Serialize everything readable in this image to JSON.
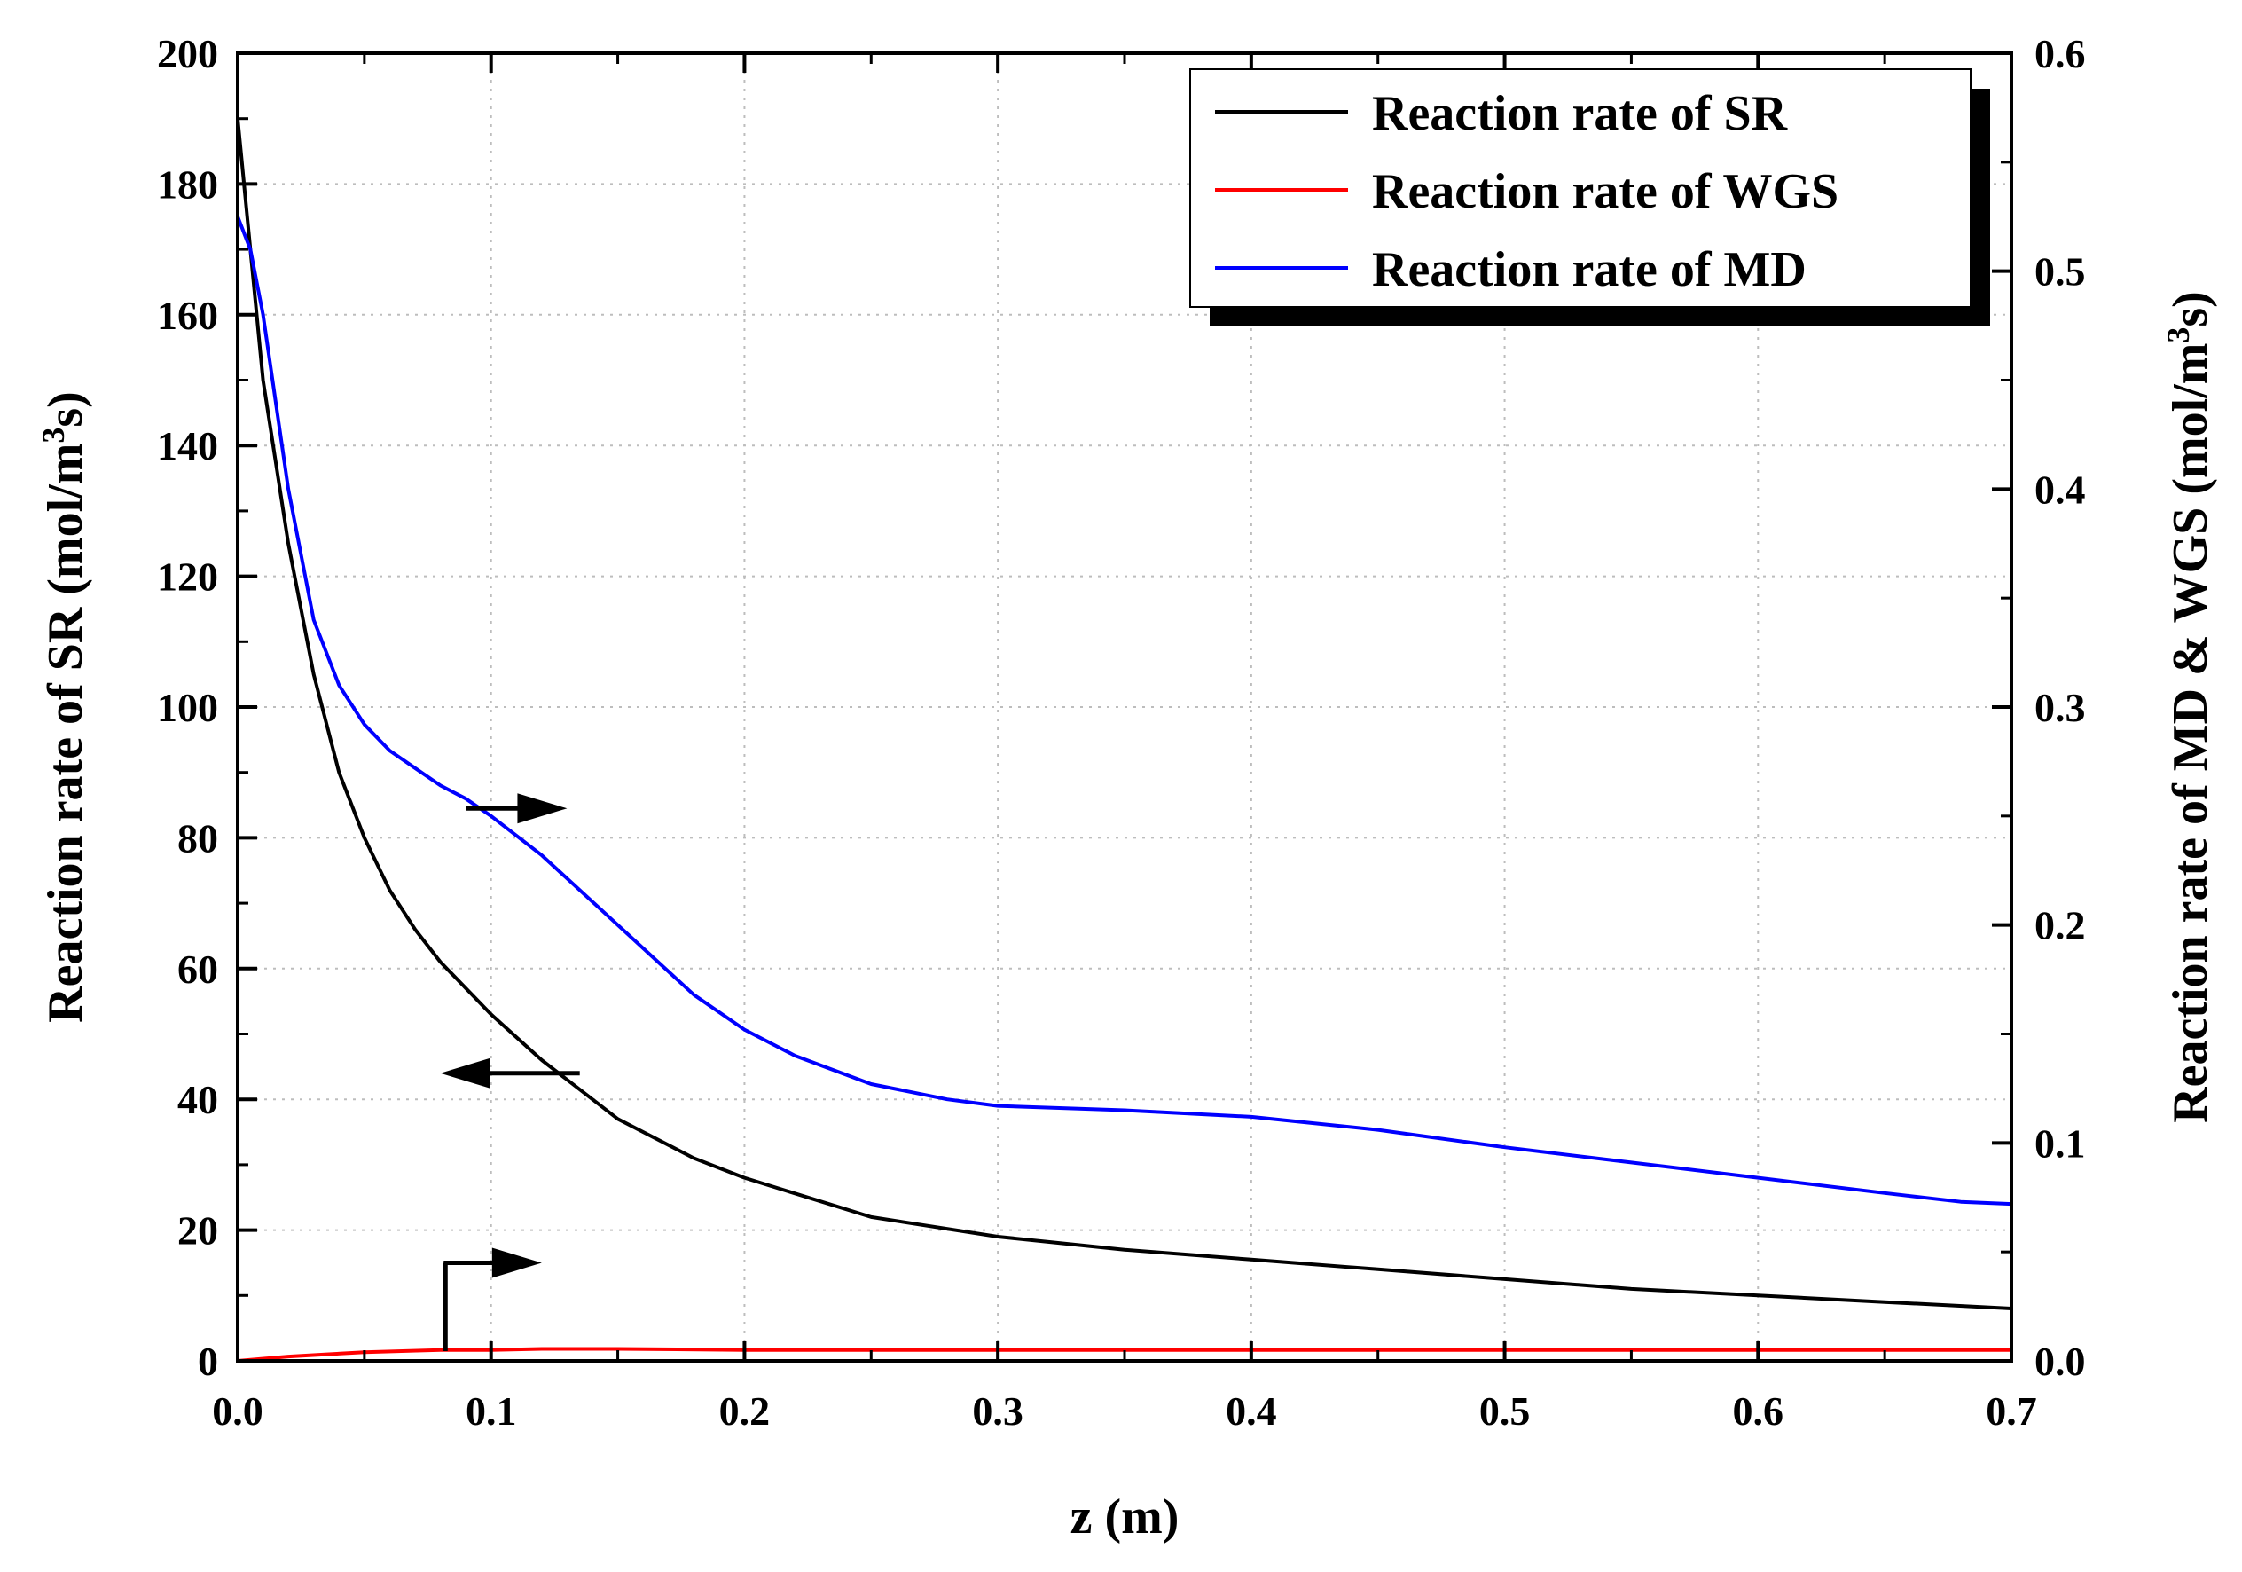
{
  "chart_data": {
    "type": "line",
    "title": "",
    "xlabel": "z (m)",
    "ylabel_left": "Reaction rate of SR (mol/m3s)",
    "ylabel_right": "Reaction rate of MD & WGS (mol/m3s)",
    "xlim": [
      0,
      0.7
    ],
    "ylim_left": [
      0,
      200
    ],
    "ylim_right": [
      0,
      0.6
    ],
    "x_ticks": [
      "0.0",
      "0.1",
      "0.2",
      "0.3",
      "0.4",
      "0.5",
      "0.6",
      "0.7"
    ],
    "y_left_ticks": [
      "0",
      "20",
      "40",
      "60",
      "80",
      "100",
      "120",
      "140",
      "160",
      "180",
      "200"
    ],
    "y_right_ticks": [
      "0.0",
      "0.1",
      "0.2",
      "0.3",
      "0.4",
      "0.5",
      "0.6"
    ],
    "grid": true,
    "legend_position": "top-right",
    "series": [
      {
        "name": "Reaction rate of SR",
        "axis": "left",
        "color": "#000000",
        "x": [
          0,
          0.005,
          0.01,
          0.02,
          0.03,
          0.04,
          0.05,
          0.06,
          0.07,
          0.08,
          0.1,
          0.12,
          0.15,
          0.18,
          0.2,
          0.25,
          0.3,
          0.35,
          0.4,
          0.45,
          0.5,
          0.55,
          0.6,
          0.65,
          0.7
        ],
        "values": [
          190,
          170,
          150,
          125,
          105,
          90,
          80,
          72,
          66,
          61,
          53,
          46,
          37,
          31,
          28,
          22,
          19,
          17,
          15.5,
          14,
          12.5,
          11,
          10,
          9,
          8
        ]
      },
      {
        "name": "Reaction rate of WGS",
        "axis": "right",
        "color": "#ff0000",
        "x": [
          0,
          0.02,
          0.05,
          0.08,
          0.1,
          0.12,
          0.15,
          0.2,
          0.3,
          0.4,
          0.5,
          0.6,
          0.7
        ],
        "values": [
          0.0,
          0.002,
          0.004,
          0.005,
          0.005,
          0.0055,
          0.0055,
          0.005,
          0.005,
          0.005,
          0.005,
          0.005,
          0.005
        ]
      },
      {
        "name": "Reaction rate of MD",
        "axis": "right",
        "color": "#0000ff",
        "x": [
          0,
          0.005,
          0.01,
          0.02,
          0.03,
          0.04,
          0.05,
          0.06,
          0.07,
          0.08,
          0.09,
          0.1,
          0.12,
          0.15,
          0.18,
          0.2,
          0.22,
          0.25,
          0.28,
          0.3,
          0.35,
          0.4,
          0.45,
          0.5,
          0.55,
          0.6,
          0.65,
          0.68,
          0.7
        ],
        "values": [
          0.525,
          0.51,
          0.48,
          0.4,
          0.34,
          0.31,
          0.292,
          0.28,
          0.272,
          0.264,
          0.258,
          0.25,
          0.232,
          0.2,
          0.168,
          0.152,
          0.14,
          0.127,
          0.12,
          0.117,
          0.115,
          0.112,
          0.106,
          0.098,
          0.091,
          0.084,
          0.077,
          0.073,
          0.072
        ]
      }
    ],
    "annotations": [
      {
        "type": "arrow",
        "points_to": "right axis",
        "label_for": "Reaction rate of MD"
      },
      {
        "type": "arrow",
        "points_to": "left axis",
        "label_for": "Reaction rate of SR"
      },
      {
        "type": "arrow",
        "points_to": "right axis",
        "label_for": "Reaction rate of WGS"
      }
    ]
  }
}
